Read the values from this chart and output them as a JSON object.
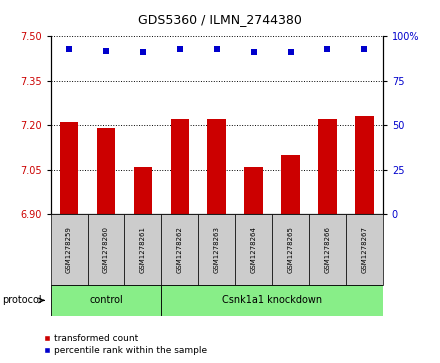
{
  "title": "GDS5360 / ILMN_2744380",
  "samples": [
    "GSM1278259",
    "GSM1278260",
    "GSM1278261",
    "GSM1278262",
    "GSM1278263",
    "GSM1278264",
    "GSM1278265",
    "GSM1278266",
    "GSM1278267"
  ],
  "bar_values": [
    7.21,
    7.19,
    7.06,
    7.22,
    7.22,
    7.06,
    7.1,
    7.22,
    7.23
  ],
  "percentile_values": [
    93,
    92,
    91,
    93,
    93,
    91,
    91,
    93,
    93
  ],
  "ylim_left": [
    6.9,
    7.5
  ],
  "ylim_right": [
    0,
    100
  ],
  "yticks_left": [
    6.9,
    7.05,
    7.2,
    7.35,
    7.5
  ],
  "yticks_right": [
    0,
    25,
    50,
    75,
    100
  ],
  "bar_color": "#cc0000",
  "dot_color": "#0000cc",
  "bar_width": 0.5,
  "n_control": 3,
  "n_knockdown": 6,
  "control_label": "control",
  "knockdown_label": "Csnk1a1 knockdown",
  "protocol_label": "protocol",
  "legend_bar_label": "transformed count",
  "legend_dot_label": "percentile rank within the sample",
  "group_bg_color": "#88ee88",
  "sample_bg_color": "#cccccc",
  "title_fontsize": 9,
  "tick_fontsize": 7,
  "sample_fontsize": 5,
  "group_fontsize": 7,
  "legend_fontsize": 6.5
}
